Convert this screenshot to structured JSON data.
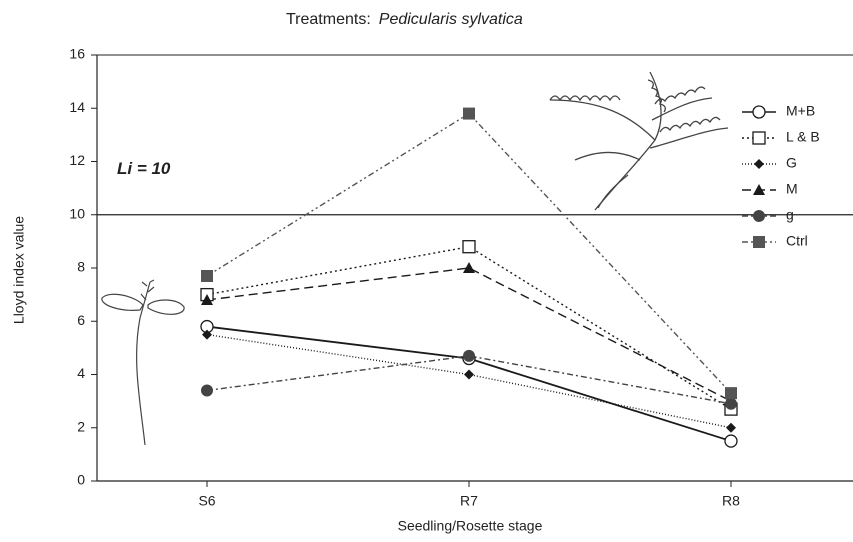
{
  "chart_data": {
    "type": "line",
    "title": {
      "lead": "Treatments:",
      "species": "Pedicularis sylvatica"
    },
    "x_label": "Seedling/Rosette stage",
    "y_label": "Lloyd index value",
    "categories": [
      "S6",
      "R7",
      "R8"
    ],
    "ylim": [
      0,
      16
    ],
    "yticks": [
      0,
      2,
      4,
      6,
      8,
      10,
      12,
      14,
      16
    ],
    "reference_line": {
      "value": 10,
      "label": "Li = 10"
    },
    "series": [
      {
        "name": "M+B",
        "color": "#1a1a1a",
        "linestyle": "solid",
        "marker": "circle-open",
        "values": [
          5.8,
          4.6,
          1.5
        ]
      },
      {
        "name": "L & B",
        "color": "#1a1a1a",
        "linestyle": "dotted",
        "marker": "square-open",
        "values": [
          7.0,
          8.8,
          2.7
        ]
      },
      {
        "name": "G",
        "color": "#1a1a1a",
        "linestyle": "finedotted",
        "marker": "diamond",
        "values": [
          5.5,
          4.0,
          2.0
        ]
      },
      {
        "name": "M",
        "color": "#1a1a1a",
        "linestyle": "dashed",
        "marker": "triangle",
        "values": [
          6.8,
          8.0,
          3.0
        ]
      },
      {
        "name": "g",
        "color": "#444444",
        "linestyle": "dashdot",
        "marker": "circle",
        "values": [
          3.4,
          4.7,
          2.9
        ]
      },
      {
        "name": "Ctrl",
        "color": "#555555",
        "linestyle": "dashdotdot",
        "marker": "square",
        "values": [
          7.7,
          13.8,
          3.3
        ]
      }
    ]
  }
}
